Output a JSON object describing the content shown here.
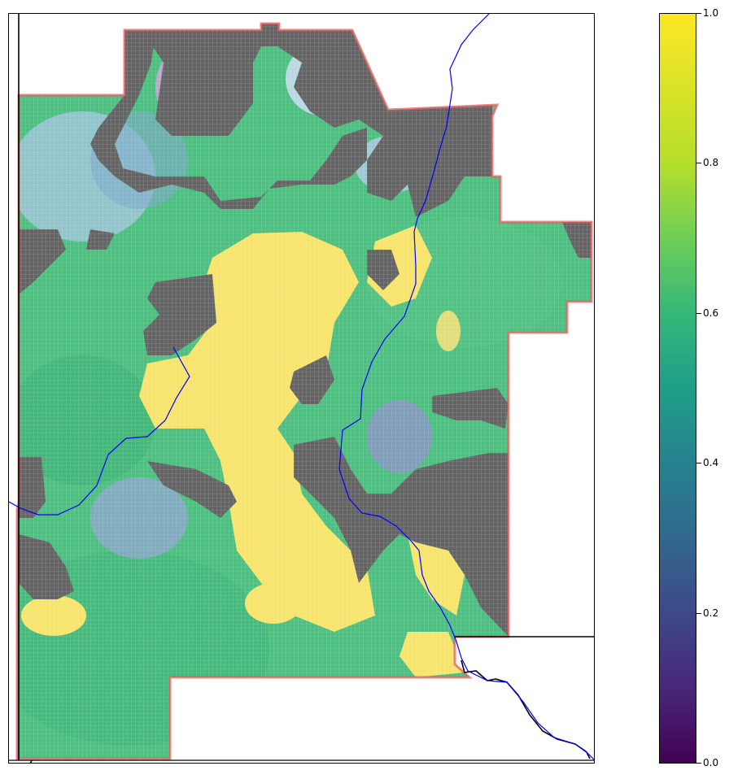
{
  "map": {
    "colormap": "viridis",
    "vmin": 0.0,
    "vmax": 1.0,
    "masked_color": "#646464",
    "boundary_color": "#e06060",
    "river_color": "#0000ff",
    "border_color": "#000000",
    "grid": true
  },
  "colorbar": {
    "orientation": "vertical",
    "location": "right",
    "ticks": [
      {
        "value": 1.0,
        "label": "1.0"
      },
      {
        "value": 0.8,
        "label": "0.8"
      },
      {
        "value": 0.6,
        "label": "0.6"
      },
      {
        "value": 0.4,
        "label": "0.4"
      },
      {
        "value": 0.2,
        "label": "0.2"
      },
      {
        "value": 0.0,
        "label": "0.0"
      }
    ],
    "gradient_stops": [
      {
        "offset": 0.0,
        "color": "#440154"
      },
      {
        "offset": 0.1,
        "color": "#482878"
      },
      {
        "offset": 0.2,
        "color": "#3e4989"
      },
      {
        "offset": 0.3,
        "color": "#31688e"
      },
      {
        "offset": 0.4,
        "color": "#26828e"
      },
      {
        "offset": 0.5,
        "color": "#1f9e89"
      },
      {
        "offset": 0.6,
        "color": "#35b779"
      },
      {
        "offset": 0.7,
        "color": "#6ece58"
      },
      {
        "offset": 0.8,
        "color": "#b5de2b"
      },
      {
        "offset": 1.0,
        "color": "#fde725"
      }
    ]
  }
}
